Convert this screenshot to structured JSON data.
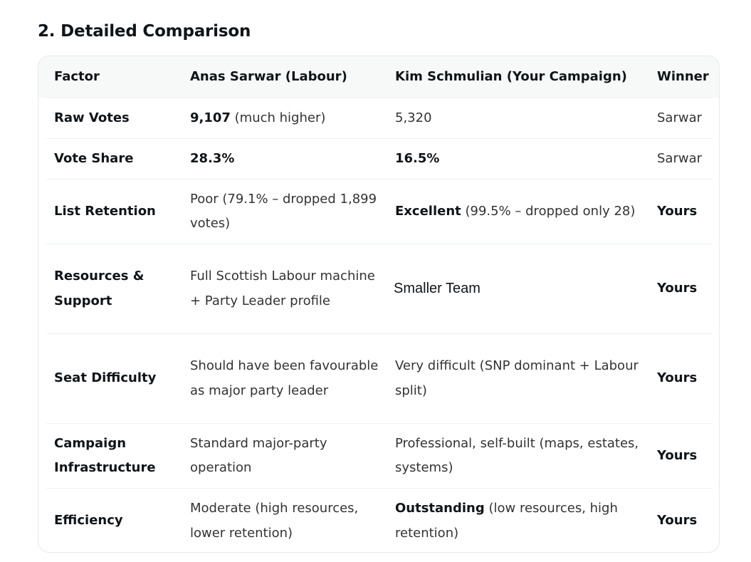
{
  "heading": "2. Detailed Comparison",
  "table": {
    "headers": [
      "Factor",
      "Anas Sarwar (Labour)",
      "Kim Schmulian (Your Campaign)",
      "Winner"
    ],
    "rows": [
      {
        "factor": "Raw Votes",
        "sarwar_bold": "9,107",
        "sarwar_rest": " (much higher)",
        "kim_bold": "",
        "kim_rest": "5,320",
        "winner": "Sarwar"
      },
      {
        "factor": "Vote Share",
        "sarwar_bold": "28.3%",
        "sarwar_rest": "",
        "kim_bold": "16.5%",
        "kim_rest": "",
        "winner": "Sarwar"
      },
      {
        "factor": "List Retention",
        "sarwar_bold": "",
        "sarwar_rest": "Poor (79.1% – dropped 1,899 votes)",
        "kim_bold": "Excellent",
        "kim_rest": " (99.5% – dropped only 28)",
        "winner": "Yours"
      },
      {
        "factor": "Resources & Support",
        "sarwar_bold": "",
        "sarwar_rest": "Full Scottish Labour machine + Party Leader profile",
        "kim_bold": "",
        "kim_rest": "Smaller Team",
        "winner": "Yours"
      },
      {
        "factor": "Seat Difficulty",
        "sarwar_bold": "",
        "sarwar_rest": "Should have been favourable as major party leader",
        "kim_bold": "",
        "kim_rest": "Very difficult (SNP dominant + Labour split)",
        "winner": "Yours"
      },
      {
        "factor": "Campaign Infrastructure",
        "sarwar_bold": "",
        "sarwar_rest": "Standard major-party operation",
        "kim_bold": "",
        "kim_rest": "Professional, self-built (maps, estates, systems)",
        "winner": "Yours"
      },
      {
        "factor": "Efficiency",
        "sarwar_bold": "",
        "sarwar_rest": "Moderate (high resources, lower retention)",
        "kim_bold": "Outstanding",
        "kim_rest": " (low resources, high retention)",
        "winner": "Yours"
      }
    ]
  }
}
